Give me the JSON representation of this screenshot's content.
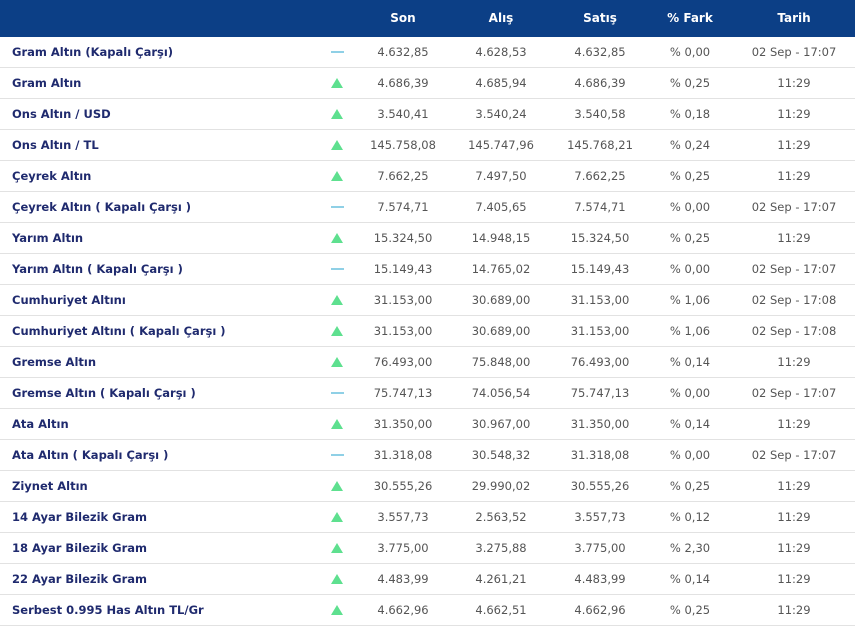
{
  "table": {
    "columns": [
      "Son",
      "Alış",
      "Satış",
      "% Fark",
      "Tarih"
    ],
    "rows": [
      [
        "Gram Altın (Kapalı Çarşı)",
        "4.632,85",
        "4.628,53",
        "4.632,85",
        "% 0,00",
        "02 Sep - 17:07"
      ],
      [
        "Gram Altın",
        "4.686,39",
        "4.685,94",
        "4.686,39",
        "% 0,25",
        "11:29"
      ],
      [
        "Ons Altın / USD",
        "3.540,41",
        "3.540,24",
        "3.540,58",
        "% 0,18",
        "11:29"
      ],
      [
        "Ons Altın / TL",
        "145.758,08",
        "145.747,96",
        "145.768,21",
        "% 0,24",
        "11:29"
      ],
      [
        "Çeyrek Altın",
        "7.662,25",
        "7.497,50",
        "7.662,25",
        "% 0,25",
        "11:29"
      ],
      [
        "Çeyrek Altın ( Kapalı Çarşı )",
        "7.574,71",
        "7.405,65",
        "7.574,71",
        "% 0,00",
        "02 Sep - 17:07"
      ],
      [
        "Yarım Altın",
        "15.324,50",
        "14.948,15",
        "15.324,50",
        "% 0,25",
        "11:29"
      ],
      [
        "Yarım Altın ( Kapalı Çarşı )",
        "15.149,43",
        "14.765,02",
        "15.149,43",
        "% 0,00",
        "02 Sep - 17:07"
      ],
      [
        "Cumhuriyet Altını",
        "31.153,00",
        "30.689,00",
        "31.153,00",
        "% 1,06",
        "02 Sep - 17:08"
      ],
      [
        "Cumhuriyet Altını ( Kapalı Çarşı )",
        "31.153,00",
        "30.689,00",
        "31.153,00",
        "% 1,06",
        "02 Sep - 17:08"
      ],
      [
        "Gremse Altın",
        "76.493,00",
        "75.848,00",
        "76.493,00",
        "% 0,14",
        "11:29"
      ],
      [
        "Gremse Altın ( Kapalı Çarşı )",
        "75.747,13",
        "74.056,54",
        "75.747,13",
        "% 0,00",
        "02 Sep - 17:07"
      ],
      [
        "Ata Altın",
        "31.350,00",
        "30.967,00",
        "31.350,00",
        "% 0,14",
        "11:29"
      ],
      [
        "Ata Altın ( Kapalı Çarşı )",
        "31.318,08",
        "30.548,32",
        "31.318,08",
        "% 0,00",
        "02 Sep - 17:07"
      ],
      [
        "Ziynet Altın",
        "30.555,26",
        "29.990,02",
        "30.555,26",
        "% 0,25",
        "11:29"
      ],
      [
        "14 Ayar Bilezik Gram",
        "3.557,73",
        "2.563,52",
        "3.557,73",
        "% 0,12",
        "11:29"
      ],
      [
        "18 Ayar Bilezik Gram",
        "3.775,00",
        "3.275,88",
        "3.775,00",
        "% 2,30",
        "11:29"
      ],
      [
        "22 Ayar Bilezik Gram",
        "4.483,99",
        "4.261,21",
        "4.483,99",
        "% 0,14",
        "11:29"
      ],
      [
        "Serbest 0.995 Has Altın TL/Gr",
        "4.662,96",
        "4.662,51",
        "4.662,96",
        "% 0,25",
        "11:29"
      ]
    ]
  }
}
